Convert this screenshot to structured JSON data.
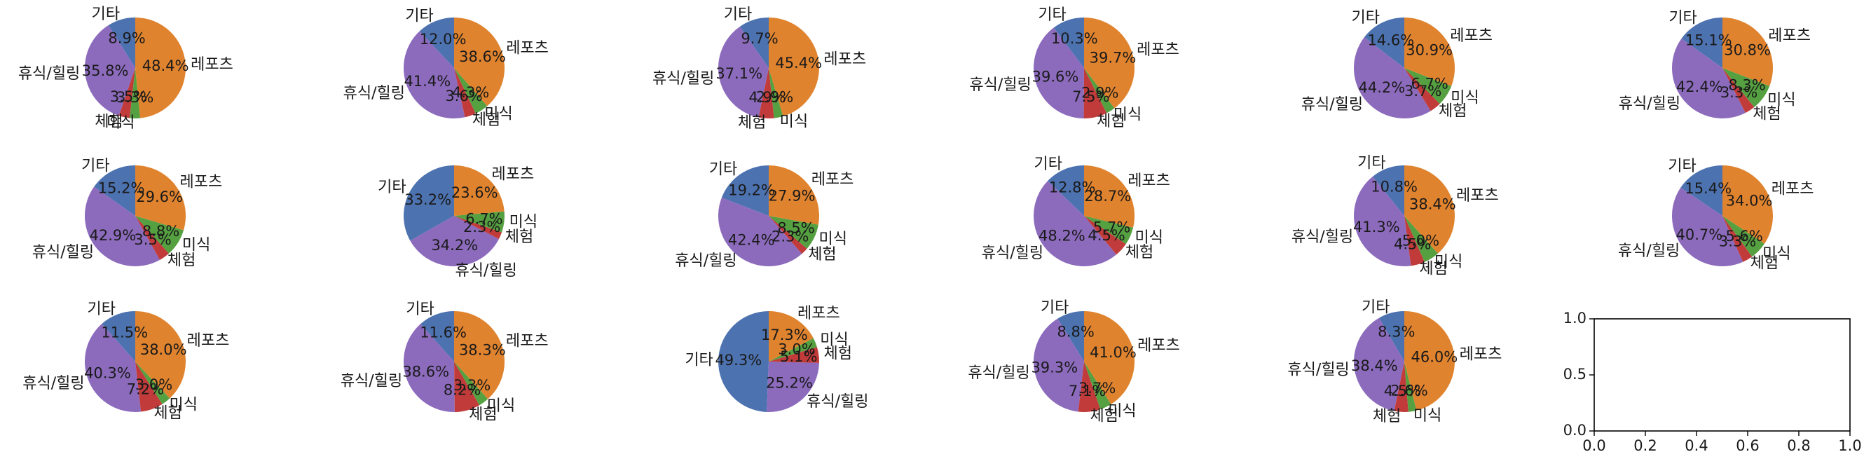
{
  "chart_data": {
    "type": "pie",
    "layout": {
      "rows": 3,
      "cols": 6
    },
    "categories": [
      "기타",
      "휴식/힐링",
      "체험",
      "미식",
      "레포츠"
    ],
    "colors": {
      "기타": "#4c72b0",
      "휴식/힐링": "#8c6bbd",
      "체험": "#c23b3b",
      "미식": "#55a040",
      "레포츠": "#e0832e"
    },
    "pies": [
      {
        "values": [
          8.9,
          35.8,
          3.5,
          3.3,
          48.4
        ],
        "labels": [
          "8.9%",
          "35.8%",
          "3.5%",
          "3.3%",
          "48.4%"
        ]
      },
      {
        "values": [
          12.0,
          41.4,
          3.6,
          4.3,
          38.6
        ],
        "labels": [
          "12.0%",
          "41.4%",
          "3.6%",
          "4.3%",
          "38.6%"
        ]
      },
      {
        "values": [
          9.7,
          37.1,
          4.9,
          2.9,
          45.4
        ],
        "labels": [
          "9.7%",
          "37.1%",
          "4.9%",
          "2.9%",
          "45.4%"
        ]
      },
      {
        "values": [
          10.3,
          39.6,
          7.5,
          2.9,
          39.7
        ],
        "labels": [
          "10.3%",
          "39.6%",
          "7.5%",
          "2.9%",
          "39.7%"
        ]
      },
      {
        "values": [
          14.6,
          44.2,
          3.7,
          6.7,
          30.9
        ],
        "labels": [
          "14.6%",
          "44.2%",
          "3.7%",
          "6.7%",
          "30.9%"
        ]
      },
      {
        "values": [
          15.1,
          42.4,
          3.3,
          8.3,
          30.8
        ],
        "labels": [
          "15.1%",
          "42.4%",
          "3.3%",
          "8.3%",
          "30.8%"
        ]
      },
      {
        "values": [
          15.2,
          42.9,
          3.5,
          8.8,
          29.6
        ],
        "labels": [
          "15.2%",
          "42.9%",
          "3.5%",
          "8.8%",
          "29.6%"
        ]
      },
      {
        "values": [
          33.2,
          34.2,
          2.3,
          6.7,
          23.6
        ],
        "labels": [
          "33.2%",
          "34.2%",
          "2.3%",
          "6.7%",
          "23.6%"
        ]
      },
      {
        "values": [
          19.2,
          42.4,
          2.3,
          8.5,
          27.9
        ],
        "labels": [
          "19.2%",
          "42.4%",
          "2.3%",
          "8.5%",
          "27.9%"
        ]
      },
      {
        "values": [
          12.8,
          48.2,
          4.5,
          5.7,
          28.7
        ],
        "labels": [
          "12.8%",
          "48.2%",
          "4.5%",
          "5.7%",
          "28.7%"
        ]
      },
      {
        "values": [
          10.8,
          41.3,
          4.5,
          5.0,
          38.4
        ],
        "labels": [
          "10.8%",
          "41.3%",
          "4.5%",
          "5.0%",
          "38.4%"
        ]
      },
      {
        "values": [
          15.4,
          40.7,
          3.3,
          5.6,
          34.0
        ],
        "labels": [
          "15.4%",
          "40.7%",
          "3.3%",
          "5.6%",
          "34.0%"
        ]
      },
      {
        "values": [
          11.5,
          40.3,
          7.2,
          3.0,
          38.0
        ],
        "labels": [
          "11.5%",
          "40.3%",
          "7.2%",
          "3.0%",
          "38.0%"
        ]
      },
      {
        "values": [
          11.6,
          38.6,
          8.2,
          3.3,
          38.3
        ],
        "labels": [
          "11.6%",
          "38.6%",
          "8.2%",
          "3.3%",
          "38.3%"
        ]
      },
      {
        "values": [
          49.3,
          25.2,
          5.1,
          3.0,
          17.3
        ],
        "labels": [
          "49.3%",
          "25.2%",
          "5.1%",
          "3.0%",
          "17.3%"
        ]
      },
      {
        "values": [
          8.8,
          39.3,
          7.1,
          3.7,
          41.0
        ],
        "labels": [
          "8.8%",
          "39.3%",
          "7.1%",
          "3.7%",
          "41.0%"
        ]
      },
      {
        "values": [
          8.3,
          38.4,
          4.5,
          2.6,
          46.0
        ],
        "labels": [
          "8.3%",
          "38.4%",
          "4.5%",
          "2.6%",
          "46.0%"
        ]
      }
    ],
    "empty_axes": {
      "xlim": [
        0.0,
        1.0
      ],
      "ylim": [
        0.0,
        1.0
      ],
      "xticks": [
        "0.0",
        "0.2",
        "0.4",
        "0.6",
        "0.8",
        "1.0"
      ],
      "yticks": [
        "0.0",
        "0.5",
        "1.0"
      ]
    }
  }
}
